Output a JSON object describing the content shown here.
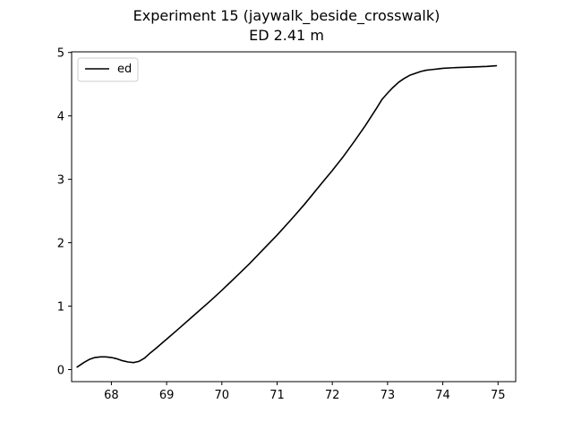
{
  "chart_data": {
    "type": "line",
    "title": "Experiment 15 (jaywalk_beside_crosswalk)",
    "subtitle": "ED 2.41 m",
    "xlabel": "",
    "ylabel": "",
    "xlim": [
      67.28,
      75.32
    ],
    "ylim": [
      -0.19,
      5.01
    ],
    "xticks": [
      68,
      69,
      70,
      71,
      72,
      73,
      74,
      75
    ],
    "yticks": [
      0,
      1,
      2,
      3,
      4,
      5
    ],
    "grid": false,
    "legend": {
      "placement": "top-left"
    },
    "series": [
      {
        "name": "ed",
        "color": "#000000",
        "x": [
          67.38,
          67.5,
          67.6,
          67.7,
          67.8,
          67.9,
          68.0,
          68.1,
          68.2,
          68.3,
          68.4,
          68.45,
          68.5,
          68.6,
          68.7,
          68.8,
          69.0,
          69.2,
          69.5,
          69.8,
          70.0,
          70.3,
          70.5,
          70.8,
          71.0,
          71.3,
          71.5,
          71.8,
          72.0,
          72.2,
          72.4,
          72.6,
          72.8,
          72.9,
          73.0,
          73.1,
          73.2,
          73.3,
          73.4,
          73.5,
          73.6,
          73.7,
          73.8,
          73.9,
          74.0,
          74.2,
          74.5,
          74.8,
          74.97
        ],
        "y": [
          0.04,
          0.11,
          0.16,
          0.19,
          0.2,
          0.2,
          0.19,
          0.17,
          0.14,
          0.12,
          0.11,
          0.12,
          0.13,
          0.18,
          0.26,
          0.33,
          0.48,
          0.63,
          0.86,
          1.09,
          1.25,
          1.5,
          1.67,
          1.94,
          2.12,
          2.41,
          2.61,
          2.93,
          3.14,
          3.36,
          3.6,
          3.85,
          4.12,
          4.26,
          4.36,
          4.45,
          4.53,
          4.59,
          4.64,
          4.67,
          4.7,
          4.72,
          4.73,
          4.74,
          4.75,
          4.76,
          4.77,
          4.78,
          4.79
        ]
      }
    ]
  }
}
